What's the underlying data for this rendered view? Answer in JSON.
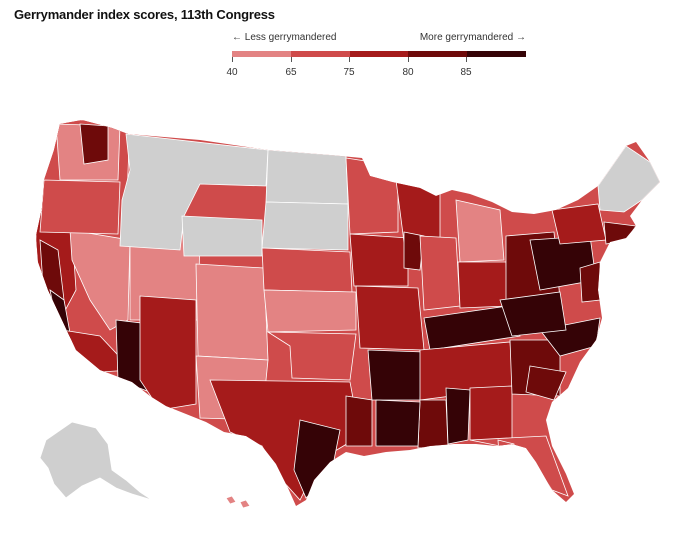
{
  "title": "Gerrymander index scores, 113th Congress",
  "legend": {
    "less_label": "← Less gerrymandered",
    "more_label": "More gerrymandered →",
    "ticks": [
      "40",
      "65",
      "75",
      "80",
      "85"
    ],
    "colors": [
      "#f2b6b6",
      "#e38383",
      "#cf4b4b",
      "#a51b1b",
      "#6e0a0a",
      "#350306"
    ]
  },
  "map": {
    "no_data_color": "#cfcfcf",
    "border_color": "#ffffff"
  }
}
